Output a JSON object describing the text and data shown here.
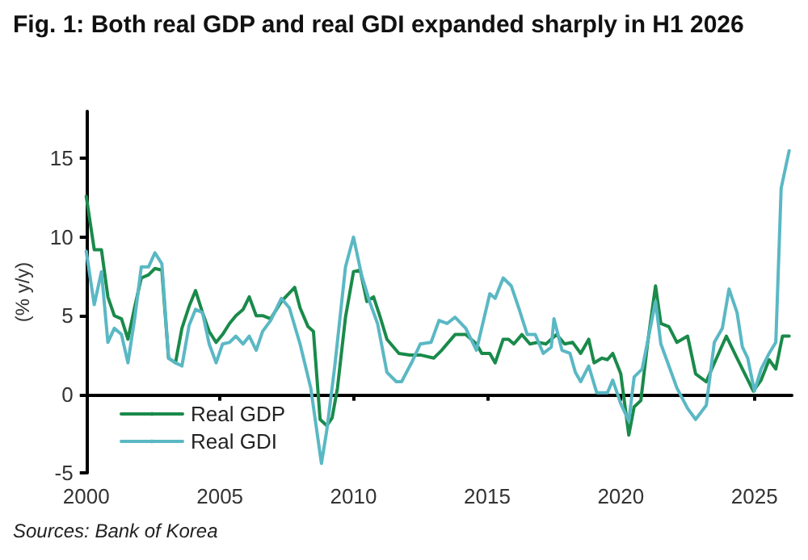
{
  "chart_data": {
    "type": "line",
    "title": "Fig. 1: Both real GDP and real GDI expanded sharply in H1 2026",
    "ylabel": "(% y/y)",
    "annotations": [
      "Sources: Bank of Korea"
    ],
    "xlim": [
      2000,
      2026.4
    ],
    "xticks": [
      2000,
      2005,
      2010,
      2015,
      2020,
      2025
    ],
    "ylim": [
      -5,
      18
    ],
    "yticks": [
      -5,
      0,
      5,
      10,
      15
    ],
    "legend": "bottom left",
    "marker": "none",
    "line_style": "solid",
    "series": [
      {
        "name": "Real GDP",
        "color": "#1a8a4a",
        "x": [
          2000.0,
          2000.3,
          2000.57,
          2000.81,
          2001.05,
          2001.32,
          2001.56,
          2001.82,
          2002.06,
          2002.33,
          2002.57,
          2002.83,
          2003.08,
          2003.34,
          2003.58,
          2003.85,
          2004.09,
          2004.35,
          2004.6,
          2004.86,
          2005.1,
          2005.36,
          2005.6,
          2005.87,
          2006.1,
          2006.36,
          2006.6,
          2006.9,
          2007.3,
          2007.8,
          2008.0,
          2008.3,
          2008.5,
          2008.75,
          2009.0,
          2009.2,
          2009.4,
          2009.7,
          2010.0,
          2010.25,
          2010.5,
          2010.75,
          2011.0,
          2011.25,
          2011.7,
          2012.1,
          2012.5,
          2013.0,
          2013.3,
          2013.8,
          2014.2,
          2014.6,
          2014.8,
          2015.1,
          2015.3,
          2015.6,
          2015.8,
          2016.0,
          2016.3,
          2016.6,
          2016.9,
          2017.2,
          2017.6,
          2017.9,
          2018.2,
          2018.5,
          2018.8,
          2019.0,
          2019.3,
          2019.5,
          2019.7,
          2020.0,
          2020.3,
          2020.5,
          2020.75,
          2021.0,
          2021.3,
          2021.5,
          2021.8,
          2022.1,
          2022.5,
          2022.8,
          2023.2,
          2023.4,
          2023.95,
          2024.35,
          2024.96,
          2025.25,
          2025.55,
          2025.8,
          2026.05,
          2026.3
        ],
        "values": [
          12.6,
          9.2,
          9.2,
          6.2,
          5.0,
          4.8,
          3.5,
          5.6,
          7.4,
          7.6,
          8.0,
          7.9,
          2.3,
          2.0,
          4.2,
          5.6,
          6.6,
          5.2,
          4.0,
          3.3,
          3.8,
          4.5,
          5.0,
          5.4,
          6.2,
          5.0,
          5.0,
          4.8,
          5.9,
          6.8,
          5.5,
          4.3,
          4.0,
          -1.6,
          -2.0,
          -1.5,
          0.4,
          4.9,
          7.8,
          7.9,
          5.9,
          6.2,
          4.9,
          3.5,
          2.6,
          2.5,
          2.5,
          2.3,
          2.8,
          3.8,
          3.8,
          3.2,
          2.6,
          2.6,
          2.0,
          3.5,
          3.5,
          3.2,
          3.8,
          3.2,
          3.3,
          3.2,
          3.8,
          3.2,
          3.3,
          2.6,
          3.5,
          2.0,
          2.3,
          2.2,
          2.6,
          1.3,
          -2.6,
          -0.8,
          -0.4,
          3.2,
          6.9,
          4.5,
          4.3,
          3.3,
          3.7,
          1.3,
          0.8,
          1.6,
          3.7,
          2.3,
          0.2,
          0.9,
          2.2,
          1.6,
          3.7,
          3.7
        ]
      },
      {
        "name": "Real GDI",
        "color": "#5ab8c4",
        "x": [
          2000.0,
          2000.3,
          2000.57,
          2000.81,
          2001.05,
          2001.32,
          2001.56,
          2001.82,
          2002.06,
          2002.33,
          2002.57,
          2002.83,
          2003.08,
          2003.34,
          2003.58,
          2003.85,
          2004.09,
          2004.35,
          2004.6,
          2004.86,
          2005.1,
          2005.36,
          2005.6,
          2005.87,
          2006.1,
          2006.36,
          2006.6,
          2006.9,
          2007.3,
          2007.6,
          2008.0,
          2008.4,
          2008.8,
          2009.0,
          2009.3,
          2009.7,
          2010.0,
          2010.3,
          2010.6,
          2010.9,
          2011.25,
          2011.6,
          2011.8,
          2012.2,
          2012.5,
          2012.9,
          2013.2,
          2013.5,
          2013.8,
          2014.2,
          2014.6,
          2015.1,
          2015.3,
          2015.6,
          2015.9,
          2016.2,
          2016.5,
          2016.8,
          2017.1,
          2017.4,
          2017.5,
          2017.8,
          2018.1,
          2018.3,
          2018.5,
          2018.8,
          2019.1,
          2019.5,
          2019.7,
          2020.0,
          2020.3,
          2020.5,
          2020.8,
          2021.3,
          2021.5,
          2021.8,
          2022.1,
          2022.5,
          2022.8,
          2023.2,
          2023.5,
          2023.8,
          2024.05,
          2024.35,
          2024.55,
          2024.75,
          2025.0,
          2025.25,
          2025.55,
          2025.8,
          2026.0,
          2026.3
        ],
        "values": [
          9.1,
          5.7,
          7.8,
          3.3,
          4.2,
          3.8,
          2.0,
          4.9,
          8.1,
          8.1,
          9.0,
          8.3,
          2.3,
          2.0,
          1.8,
          4.4,
          5.4,
          5.2,
          3.2,
          2.0,
          3.2,
          3.3,
          3.7,
          3.2,
          3.7,
          2.8,
          4.0,
          4.7,
          6.1,
          5.5,
          3.2,
          0.4,
          -4.4,
          -2.3,
          1.8,
          8.1,
          10.0,
          7.6,
          5.9,
          4.5,
          1.4,
          0.8,
          0.8,
          2.1,
          3.2,
          3.3,
          4.7,
          4.5,
          4.9,
          4.2,
          2.8,
          6.4,
          6.1,
          7.4,
          6.9,
          5.4,
          3.8,
          3.8,
          2.6,
          3.0,
          4.8,
          2.8,
          2.6,
          1.4,
          0.8,
          1.8,
          0.1,
          0.1,
          0.9,
          -0.6,
          -1.7,
          1.1,
          1.6,
          5.9,
          3.2,
          1.8,
          0.4,
          -0.9,
          -1.6,
          -0.7,
          3.3,
          4.2,
          6.7,
          5.2,
          3.0,
          2.3,
          0.2,
          1.6,
          2.6,
          3.3,
          13.1,
          15.5
        ]
      }
    ]
  }
}
